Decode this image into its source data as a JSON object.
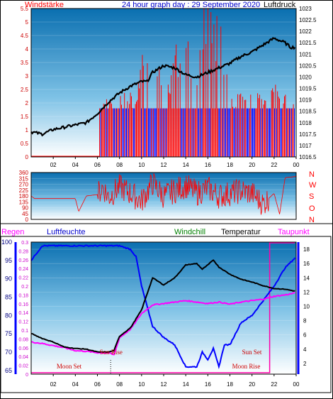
{
  "header": {
    "left_label": "Windstärke",
    "title": "24 hour graph day : 29 September 2020",
    "right_label": "Luftdruck"
  },
  "legend": {
    "regen": "Regen",
    "luftfeuchte": "Luftfeuchte",
    "windchill": "Windchill",
    "temperatur": "Temperatur",
    "taupunkt": "Taupunkt"
  },
  "compass": [
    "N",
    "W",
    "S",
    "O",
    "N"
  ],
  "annotations": {
    "moon_set": "Moon Set",
    "sun_rise": "Sun Rise",
    "sun_set": "Sun Set",
    "moon_rise": "Moon Rise"
  },
  "colors": {
    "wind": "#ff0000",
    "gust": "#0000ff",
    "pressure": "#000000",
    "humidity": "#0000ff",
    "temperature": "#000000",
    "dewpoint": "#ff00ff",
    "annotation": "#cc0000"
  },
  "chart_data": [
    {
      "type": "line",
      "title": "24 hour graph day : 29 September 2020",
      "x_ticks": [
        "02",
        "04",
        "06",
        "08",
        "10",
        "12",
        "14",
        "16",
        "18",
        "20",
        "22",
        "00"
      ],
      "left_axis": {
        "label": "Windstärke",
        "ticks": [
          "0",
          "0.5",
          "1",
          "1.5",
          "2",
          "2.5",
          "3",
          "3.5",
          "4",
          "4.5",
          "5",
          "5.5"
        ],
        "ylim": [
          0,
          5.5
        ]
      },
      "right_axis": {
        "label": "Luftdruck",
        "ticks": [
          "1016.5",
          "1017",
          "1017.5",
          "1018",
          "1018.5",
          "1019",
          "1019.5",
          "1020",
          "1020.5",
          "1021",
          "1021.5",
          "1022",
          "1022.5",
          "1023"
        ],
        "ylim": [
          1016.5,
          1023
        ]
      },
      "series": [
        {
          "name": "Luftdruck",
          "x": [
            0,
            1,
            2,
            3,
            4,
            5,
            6,
            7,
            8,
            9,
            10,
            10.5,
            11,
            12,
            13,
            14,
            15,
            16,
            17,
            18,
            19,
            20,
            21,
            22,
            23,
            23.5,
            24
          ],
          "values": [
            1017.6,
            1017.5,
            1017.7,
            1017.8,
            1017.9,
            1018.0,
            1018.4,
            1018.9,
            1019.3,
            1019.6,
            1019.8,
            1019.8,
            1020.2,
            1020.5,
            1020.4,
            1020.1,
            1020.0,
            1020.2,
            1020.4,
            1020.6,
            1020.9,
            1021.1,
            1021.4,
            1021.7,
            1021.5,
            1021.3,
            1021.3
          ]
        },
        {
          "name": "Wind",
          "x": [
            0,
            6,
            6.2,
            8,
            9.5,
            10.5,
            11,
            12,
            12.5,
            13,
            14,
            15,
            16,
            17,
            18,
            19,
            20,
            21,
            22,
            23,
            24
          ],
          "values": [
            0,
            0,
            1.8,
            1.8,
            1.8,
            4.5,
            1.8,
            4.0,
            1.8,
            3.5,
            4.8,
            3.0,
            5.2,
            4.6,
            1.8,
            1.8,
            2.5,
            1.8,
            2.2,
            1.8,
            1.8
          ]
        }
      ]
    },
    {
      "type": "line",
      "x_ticks": [
        "02",
        "04",
        "06",
        "08",
        "10",
        "12",
        "14",
        "16",
        "18",
        "20",
        "22",
        "00"
      ],
      "left_axis": {
        "ticks": [
          "0",
          "45",
          "90",
          "135",
          "180",
          "225",
          "270",
          "315",
          "360"
        ],
        "ylim": [
          0,
          360
        ]
      },
      "series": [
        {
          "name": "Windrichtung",
          "x": [
            0,
            0.3,
            4,
            4.3,
            5,
            6,
            6.5,
            7,
            8,
            9,
            10,
            11,
            12,
            13,
            14,
            15,
            16,
            17,
            18,
            19,
            20,
            21,
            22,
            22.5,
            23,
            24
          ],
          "values": [
            180,
            160,
            160,
            60,
            180,
            190,
            250,
            170,
            250,
            200,
            140,
            280,
            180,
            220,
            260,
            200,
            240,
            180,
            200,
            220,
            200,
            120,
            200,
            40,
            320,
            330
          ]
        }
      ]
    },
    {
      "type": "line",
      "x_ticks": [
        "02",
        "04",
        "06",
        "08",
        "10",
        "12",
        "14",
        "16",
        "18",
        "20",
        "22",
        "00"
      ],
      "left_axis_humidity": {
        "label": "Luftfeuchte",
        "ticks": [
          "65",
          "70",
          "75",
          "80",
          "85",
          "90",
          "95",
          "100"
        ],
        "ylim": [
          64,
          100
        ]
      },
      "left_axis_rain": {
        "label": "Regen",
        "ticks": [
          "0",
          "0.02",
          "0.04",
          "0.06",
          "0.08",
          "0.1",
          "0.12",
          "0.14",
          "0.16",
          "0.18",
          "0.2",
          "0.22",
          "0.24",
          "0.26",
          "0.28",
          "0.3"
        ],
        "ylim": [
          0,
          0.3
        ]
      },
      "right_axis_temp": {
        "ticks": [
          "2",
          "4",
          "6",
          "8",
          "10",
          "12",
          "14",
          "16",
          "18"
        ],
        "ylim": [
          0.5,
          19
        ]
      },
      "series": [
        {
          "name": "Luftfeuchte",
          "x": [
            0,
            0.5,
            1,
            2,
            3,
            4,
            5,
            6,
            7,
            8,
            9,
            9.5,
            10,
            11,
            12,
            13,
            14,
            15,
            15.5,
            16,
            16.5,
            17,
            17.5,
            18,
            19,
            20,
            21,
            22,
            23,
            24
          ],
          "values": [
            95,
            97,
            99,
            99,
            99,
            99,
            99,
            99,
            99,
            99,
            98,
            96,
            88,
            77,
            74,
            72,
            66,
            66,
            70,
            68,
            71,
            66,
            72,
            72,
            78,
            80,
            84,
            88,
            93,
            96
          ]
        },
        {
          "name": "Temperatur",
          "x": [
            0,
            1,
            2,
            3,
            4,
            5,
            6,
            7,
            7.5,
            8,
            9,
            10,
            11,
            12,
            13,
            14,
            15,
            15.5,
            16,
            16.5,
            17,
            18,
            19,
            20,
            21,
            22,
            23,
            24
          ],
          "values": [
            6.2,
            5.5,
            5.0,
            4.3,
            4.1,
            4.0,
            3.6,
            3.6,
            3.8,
            5.8,
            7.0,
            9.5,
            14.0,
            13.0,
            14.0,
            15.8,
            16.0,
            15.2,
            15.8,
            16.5,
            15.5,
            14.5,
            13.8,
            13.4,
            12.9,
            12.5,
            12.4,
            12.1
          ]
        },
        {
          "name": "Taupunkt",
          "x": [
            0,
            1,
            2,
            3,
            4,
            5,
            6,
            7,
            7.5,
            8,
            9,
            10,
            11,
            12,
            13,
            14,
            15,
            16,
            17,
            18,
            19,
            20,
            21,
            22,
            23,
            24
          ],
          "values": [
            5.0,
            4.8,
            4.5,
            4.2,
            3.8,
            3.7,
            3.5,
            3.5,
            3.2,
            5.6,
            6.8,
            9.0,
            10.2,
            10.4,
            10.6,
            10.8,
            10.6,
            10.4,
            10.6,
            10.3,
            10.6,
            10.8,
            11.0,
            11.4,
            11.6,
            11.9
          ]
        }
      ]
    }
  ]
}
